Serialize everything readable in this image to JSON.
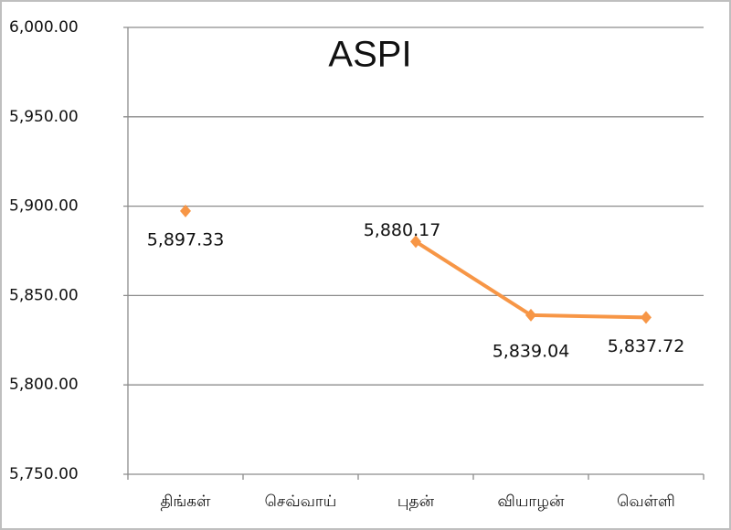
{
  "chart_data": {
    "type": "line",
    "title": "ASPI",
    "categories": [
      "திங்கள்",
      "செவ்வாய்",
      "புதன்",
      "வியாழன்",
      "வெள்ளி"
    ],
    "series": [
      {
        "color": "#f79646",
        "values": [
          5897.33,
          null,
          5880.17,
          5839.04,
          5837.72
        ],
        "value_labels": [
          "5,897.33",
          null,
          "5,880.17",
          "5,839.04",
          "5,837.72"
        ]
      }
    ],
    "ylim": [
      5750,
      6000
    ],
    "yticks": [
      {
        "value": 5750,
        "label": "5,750.00"
      },
      {
        "value": 5800,
        "label": "5,800.00"
      },
      {
        "value": 5850,
        "label": "5,850.00"
      },
      {
        "value": 5900,
        "label": "5,900.00"
      },
      {
        "value": 5950,
        "label": "5,950.00"
      },
      {
        "value": 6000,
        "label": "6,000.00"
      }
    ],
    "grid": true
  }
}
